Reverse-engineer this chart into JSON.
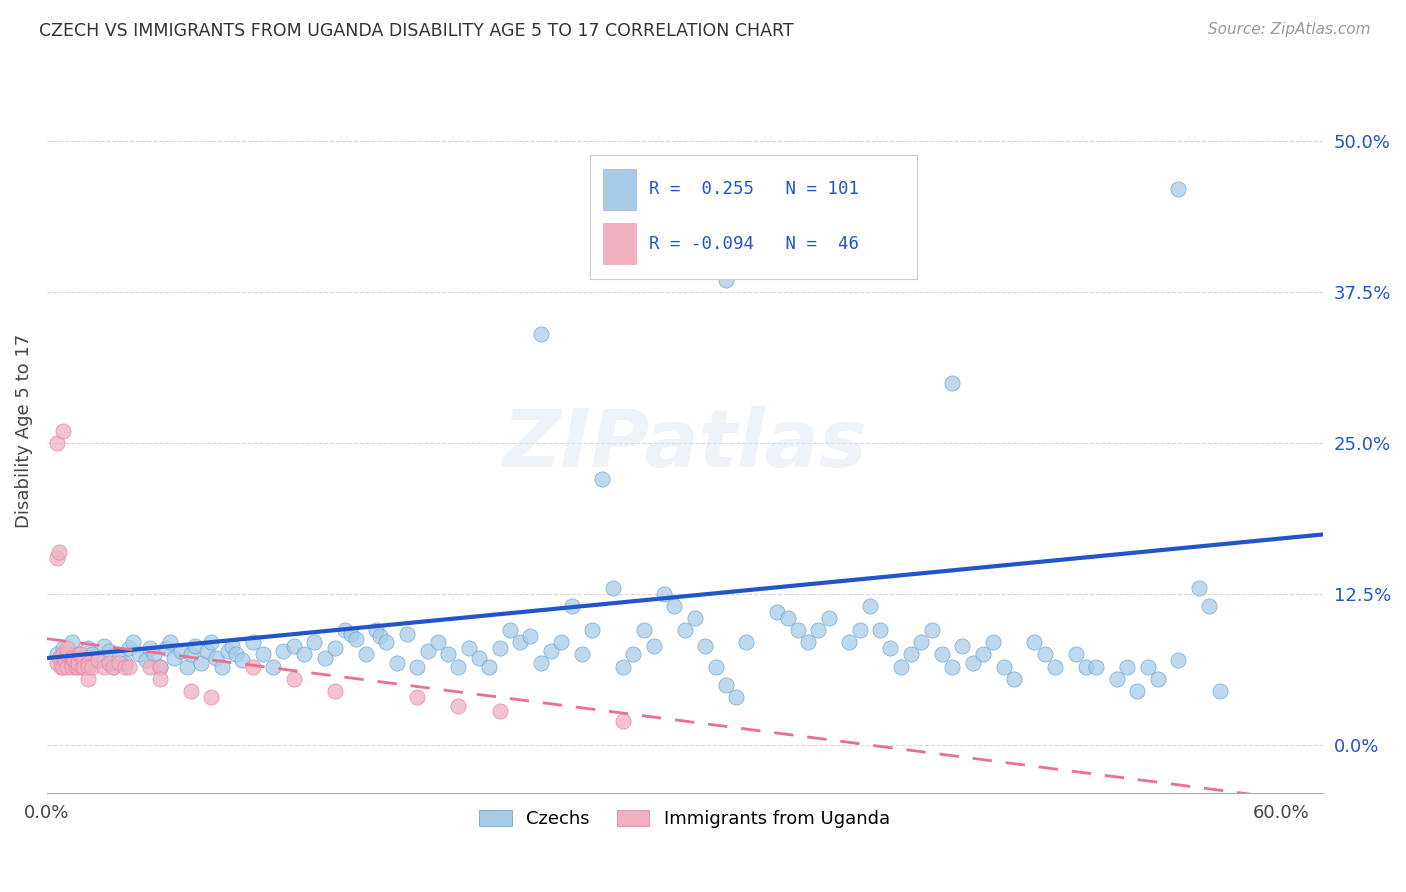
{
  "title": "CZECH VS IMMIGRANTS FROM UGANDA DISABILITY AGE 5 TO 17 CORRELATION CHART",
  "source": "Source: ZipAtlas.com",
  "ylabel": "Disability Age 5 to 17",
  "xlim": [
    0.0,
    0.62
  ],
  "ylim": [
    -0.04,
    0.56
  ],
  "yticks": [
    0.0,
    0.125,
    0.25,
    0.375,
    0.5
  ],
  "ytick_labels": [
    "0.0%",
    "12.5%",
    "25.0%",
    "37.5%",
    "50.0%"
  ],
  "xticks": [
    0.0,
    0.1,
    0.2,
    0.3,
    0.4,
    0.5,
    0.6
  ],
  "xtick_labels": [
    "0.0%",
    "",
    "",
    "",
    "",
    "",
    "60.0%"
  ],
  "background_color": "#ffffff",
  "grid_color": "#d0d0d0",
  "watermark": "ZIPatlas",
  "czech_color": "#a8cce8",
  "ugandan_color": "#f0b0c0",
  "czech_line_color": "#2255cc",
  "ugandan_line_color": "#e87090",
  "tick_color": "#2255cc",
  "czech_scatter": [
    [
      0.005,
      0.075
    ],
    [
      0.008,
      0.08
    ],
    [
      0.01,
      0.07
    ],
    [
      0.012,
      0.085
    ],
    [
      0.015,
      0.075
    ],
    [
      0.018,
      0.065
    ],
    [
      0.02,
      0.08
    ],
    [
      0.022,
      0.075
    ],
    [
      0.025,
      0.07
    ],
    [
      0.028,
      0.082
    ],
    [
      0.03,
      0.078
    ],
    [
      0.032,
      0.065
    ],
    [
      0.035,
      0.072
    ],
    [
      0.038,
      0.068
    ],
    [
      0.04,
      0.08
    ],
    [
      0.042,
      0.085
    ],
    [
      0.045,
      0.075
    ],
    [
      0.048,
      0.07
    ],
    [
      0.05,
      0.08
    ],
    [
      0.052,
      0.075
    ],
    [
      0.055,
      0.065
    ],
    [
      0.058,
      0.08
    ],
    [
      0.06,
      0.085
    ],
    [
      0.062,
      0.072
    ],
    [
      0.065,
      0.078
    ],
    [
      0.068,
      0.065
    ],
    [
      0.07,
      0.075
    ],
    [
      0.072,
      0.082
    ],
    [
      0.075,
      0.068
    ],
    [
      0.078,
      0.078
    ],
    [
      0.08,
      0.085
    ],
    [
      0.082,
      0.072
    ],
    [
      0.085,
      0.065
    ],
    [
      0.088,
      0.078
    ],
    [
      0.09,
      0.082
    ],
    [
      0.092,
      0.075
    ],
    [
      0.095,
      0.07
    ],
    [
      0.1,
      0.085
    ],
    [
      0.105,
      0.075
    ],
    [
      0.11,
      0.065
    ],
    [
      0.115,
      0.078
    ],
    [
      0.12,
      0.082
    ],
    [
      0.125,
      0.075
    ],
    [
      0.13,
      0.085
    ],
    [
      0.135,
      0.072
    ],
    [
      0.14,
      0.08
    ],
    [
      0.145,
      0.095
    ],
    [
      0.148,
      0.092
    ],
    [
      0.15,
      0.088
    ],
    [
      0.155,
      0.075
    ],
    [
      0.16,
      0.095
    ],
    [
      0.162,
      0.09
    ],
    [
      0.165,
      0.085
    ],
    [
      0.17,
      0.068
    ],
    [
      0.175,
      0.092
    ],
    [
      0.18,
      0.065
    ],
    [
      0.185,
      0.078
    ],
    [
      0.19,
      0.085
    ],
    [
      0.195,
      0.075
    ],
    [
      0.2,
      0.065
    ],
    [
      0.205,
      0.08
    ],
    [
      0.21,
      0.072
    ],
    [
      0.215,
      0.065
    ],
    [
      0.22,
      0.08
    ],
    [
      0.225,
      0.095
    ],
    [
      0.23,
      0.085
    ],
    [
      0.235,
      0.09
    ],
    [
      0.24,
      0.068
    ],
    [
      0.245,
      0.078
    ],
    [
      0.25,
      0.085
    ],
    [
      0.255,
      0.115
    ],
    [
      0.26,
      0.075
    ],
    [
      0.265,
      0.095
    ],
    [
      0.27,
      0.22
    ],
    [
      0.275,
      0.13
    ],
    [
      0.28,
      0.065
    ],
    [
      0.285,
      0.075
    ],
    [
      0.29,
      0.095
    ],
    [
      0.295,
      0.082
    ],
    [
      0.3,
      0.125
    ],
    [
      0.305,
      0.115
    ],
    [
      0.31,
      0.095
    ],
    [
      0.315,
      0.105
    ],
    [
      0.32,
      0.082
    ],
    [
      0.325,
      0.065
    ],
    [
      0.33,
      0.05
    ],
    [
      0.335,
      0.04
    ],
    [
      0.34,
      0.085
    ],
    [
      0.355,
      0.11
    ],
    [
      0.36,
      0.105
    ],
    [
      0.365,
      0.095
    ],
    [
      0.37,
      0.085
    ],
    [
      0.375,
      0.095
    ],
    [
      0.38,
      0.105
    ],
    [
      0.39,
      0.085
    ],
    [
      0.395,
      0.095
    ],
    [
      0.4,
      0.115
    ],
    [
      0.405,
      0.095
    ],
    [
      0.41,
      0.08
    ],
    [
      0.415,
      0.065
    ],
    [
      0.42,
      0.075
    ],
    [
      0.425,
      0.085
    ],
    [
      0.43,
      0.095
    ],
    [
      0.435,
      0.075
    ],
    [
      0.44,
      0.065
    ],
    [
      0.445,
      0.082
    ],
    [
      0.45,
      0.068
    ],
    [
      0.455,
      0.075
    ],
    [
      0.46,
      0.085
    ],
    [
      0.465,
      0.065
    ],
    [
      0.47,
      0.055
    ],
    [
      0.48,
      0.085
    ],
    [
      0.485,
      0.075
    ],
    [
      0.49,
      0.065
    ],
    [
      0.5,
      0.075
    ],
    [
      0.505,
      0.065
    ],
    [
      0.51,
      0.065
    ],
    [
      0.52,
      0.055
    ],
    [
      0.525,
      0.065
    ],
    [
      0.53,
      0.045
    ],
    [
      0.535,
      0.065
    ],
    [
      0.54,
      0.055
    ],
    [
      0.55,
      0.07
    ],
    [
      0.56,
      0.13
    ],
    [
      0.565,
      0.115
    ],
    [
      0.57,
      0.045
    ],
    [
      0.44,
      0.3
    ],
    [
      0.33,
      0.385
    ],
    [
      0.24,
      0.34
    ],
    [
      0.55,
      0.46
    ]
  ],
  "ugandan_scatter": [
    [
      0.005,
      0.068
    ],
    [
      0.006,
      0.072
    ],
    [
      0.007,
      0.065
    ],
    [
      0.008,
      0.075
    ],
    [
      0.008,
      0.065
    ],
    [
      0.009,
      0.07
    ],
    [
      0.01,
      0.065
    ],
    [
      0.01,
      0.075
    ],
    [
      0.01,
      0.08
    ],
    [
      0.012,
      0.068
    ],
    [
      0.012,
      0.072
    ],
    [
      0.012,
      0.065
    ],
    [
      0.013,
      0.07
    ],
    [
      0.014,
      0.065
    ],
    [
      0.015,
      0.072
    ],
    [
      0.015,
      0.065
    ],
    [
      0.015,
      0.068
    ],
    [
      0.016,
      0.075
    ],
    [
      0.017,
      0.065
    ],
    [
      0.018,
      0.07
    ],
    [
      0.018,
      0.065
    ],
    [
      0.02,
      0.068
    ],
    [
      0.02,
      0.065
    ],
    [
      0.02,
      0.055
    ],
    [
      0.022,
      0.065
    ],
    [
      0.025,
      0.07
    ],
    [
      0.028,
      0.065
    ],
    [
      0.03,
      0.068
    ],
    [
      0.032,
      0.065
    ],
    [
      0.035,
      0.068
    ],
    [
      0.038,
      0.065
    ],
    [
      0.04,
      0.065
    ],
    [
      0.05,
      0.065
    ],
    [
      0.055,
      0.065
    ],
    [
      0.055,
      0.055
    ],
    [
      0.07,
      0.045
    ],
    [
      0.08,
      0.04
    ],
    [
      0.1,
      0.065
    ],
    [
      0.12,
      0.055
    ],
    [
      0.14,
      0.045
    ],
    [
      0.18,
      0.04
    ],
    [
      0.2,
      0.032
    ],
    [
      0.22,
      0.028
    ],
    [
      0.28,
      0.02
    ],
    [
      0.005,
      0.25
    ],
    [
      0.008,
      0.26
    ],
    [
      0.005,
      0.155
    ],
    [
      0.006,
      0.16
    ]
  ]
}
